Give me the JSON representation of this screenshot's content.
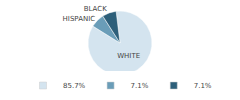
{
  "chart_data": {
    "type": "pie",
    "categories": [
      "WHITE",
      "HISPANIC",
      "BLACK"
    ],
    "values": [
      85.7,
      7.1,
      7.1
    ],
    "value_labels": [
      "85.7%",
      "7.1%",
      "7.1%"
    ],
    "colors": [
      "#d4e4ef",
      "#6a9db8",
      "#2d5f7a"
    ],
    "legend": "bottom"
  }
}
